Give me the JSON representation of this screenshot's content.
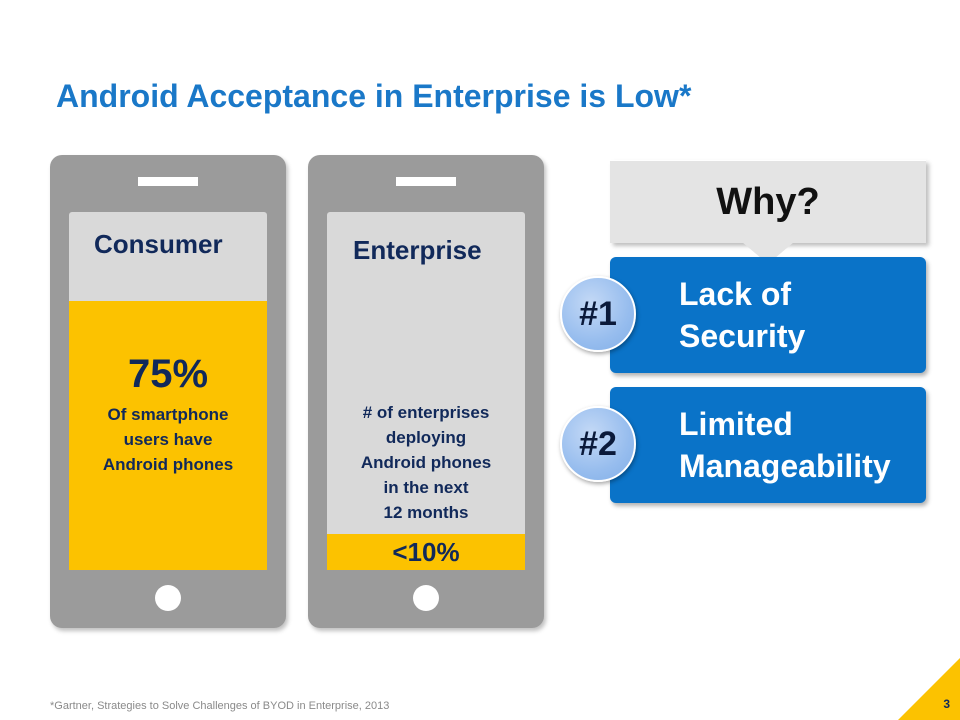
{
  "slide": {
    "title": "Android Acceptance in Enterprise is Low*",
    "footnote": "*Gartner, Strategies to Solve Challenges of BYOD in Enterprise, 2013",
    "page_number": "3"
  },
  "consumer": {
    "label": "Consumer",
    "percent": "75%",
    "desc_lines": [
      "Of smartphone",
      "users have",
      "Android phones"
    ]
  },
  "enterprise": {
    "label": "Enterprise",
    "desc_lines": [
      "# of enterprises",
      "deploying",
      "Android phones",
      "in the next",
      "12 months"
    ],
    "percent": "<10%"
  },
  "why": {
    "text": "Why?"
  },
  "reasons": [
    {
      "badge": "#1",
      "lines": [
        "Lack of",
        "Security"
      ]
    },
    {
      "badge": "#2",
      "lines": [
        "Limited",
        "Manageability"
      ]
    }
  ],
  "colors": {
    "title_blue": "#1a78c8",
    "navy": "#11295a",
    "yellow": "#fcc200",
    "phone_gray": "#9b9b9b",
    "reason_blue": "#0a73c8"
  }
}
